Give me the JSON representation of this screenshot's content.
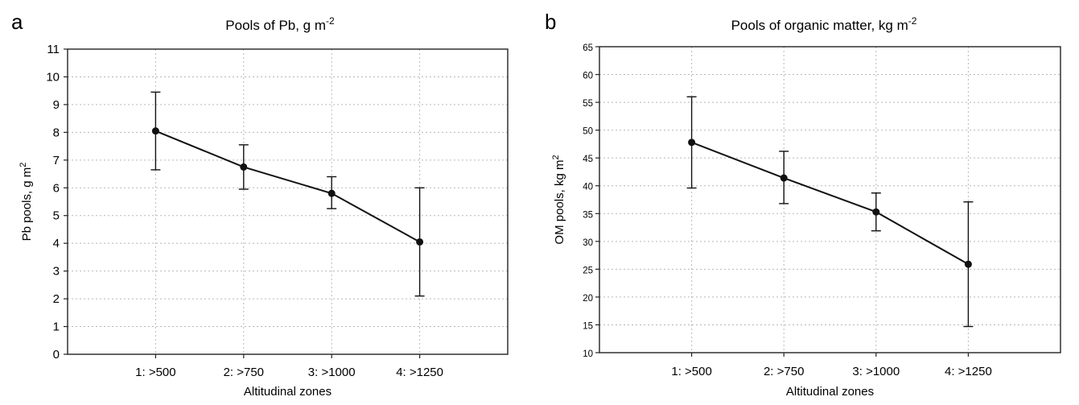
{
  "chart_data": [
    {
      "type": "line",
      "panel_label": "a",
      "title": "Pools of Pb, g m",
      "title_superscript": "-2",
      "xlabel": "Altitudinal zones",
      "ylabel": "Pb pools, g m",
      "ylabel_superscript": "2",
      "categories": [
        "1: >500",
        "2: >750",
        "3: >1000",
        "4: >1250"
      ],
      "ylim": [
        0,
        11
      ],
      "yticks": [
        0,
        1,
        2,
        3,
        4,
        5,
        6,
        7,
        8,
        9,
        10,
        11
      ],
      "grid": true,
      "series": [
        {
          "values": [
            8.05,
            6.75,
            5.8,
            4.05
          ],
          "err_low": [
            6.65,
            5.95,
            5.25,
            2.1
          ],
          "err_high": [
            9.45,
            7.55,
            6.4,
            6.0
          ]
        }
      ]
    },
    {
      "type": "line",
      "panel_label": "b",
      "title": "Pools of organic matter, kg m",
      "title_superscript": "-2",
      "xlabel": "Altitudinal zones",
      "ylabel": "OM pools, kg m",
      "ylabel_superscript": "2",
      "categories": [
        "1: >500",
        "2: >750",
        "3: >1000",
        "4: >1250"
      ],
      "ylim": [
        10,
        65
      ],
      "yticks": [
        10,
        15,
        20,
        25,
        30,
        35,
        40,
        45,
        50,
        55,
        60,
        65
      ],
      "grid": true,
      "series": [
        {
          "values": [
            47.8,
            41.4,
            35.3,
            25.9
          ],
          "err_low": [
            39.6,
            36.8,
            31.9,
            14.7
          ],
          "err_high": [
            56.0,
            46.2,
            38.7,
            37.1
          ]
        }
      ]
    }
  ]
}
